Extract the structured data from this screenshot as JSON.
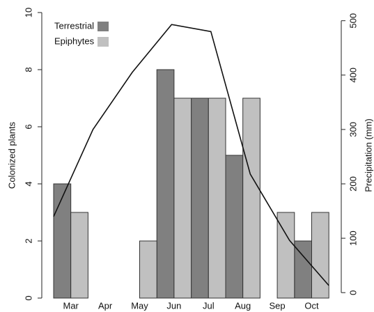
{
  "chart_data": {
    "type": "bar",
    "categories": [
      "Mar",
      "Apr",
      "May",
      "Jun",
      "Jul",
      "Aug",
      "Sep",
      "Oct"
    ],
    "series": [
      {
        "name": "Terrestrial",
        "color": "#808080",
        "values": [
          4,
          0,
          0,
          8,
          7,
          5,
          0,
          2
        ]
      },
      {
        "name": "Epiphytes",
        "color": "#c0c0c0",
        "values": [
          3,
          0,
          2,
          7,
          7,
          7,
          3,
          3
        ]
      },
      {
        "type": "line",
        "axis": "y2",
        "color": "#111111",
        "values": [
          140,
          300,
          405,
          493,
          480,
          218,
          96,
          13
        ]
      }
    ],
    "ylabel": "Colonized plants",
    "y2label": "Precipitation (mm)",
    "ylim": [
      0,
      10
    ],
    "yticks": [
      0,
      2,
      4,
      6,
      8,
      10
    ],
    "y2lim": [
      -10,
      515
    ],
    "y2ticks": [
      0,
      100,
      200,
      300,
      400,
      500
    ],
    "legend": "top-left"
  }
}
